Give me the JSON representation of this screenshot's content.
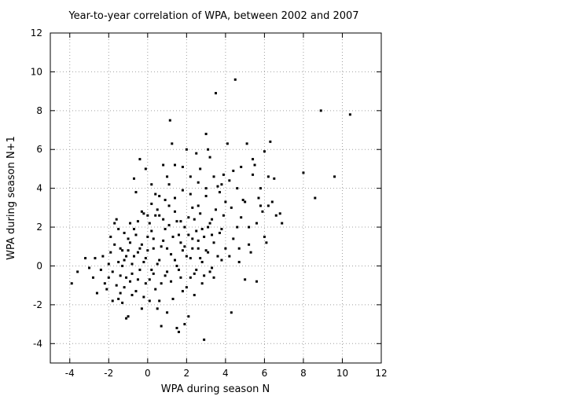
{
  "chart_data": {
    "type": "scatter",
    "title": "Year-to-year correlation of WPA, between 2002 and 2007",
    "xlabel": "WPA during season N",
    "ylabel": "WPA during season N+1",
    "xlim": [
      -5,
      12
    ],
    "ylim": [
      -5,
      12
    ],
    "xticks": [
      -4,
      -2,
      0,
      2,
      4,
      6,
      8,
      10,
      12
    ],
    "yticks": [
      -4,
      -2,
      0,
      2,
      4,
      6,
      8,
      10,
      12
    ],
    "grid": true,
    "legend": "none",
    "marker_color": "#000000",
    "grid_color": "#a0a0a0",
    "series": [
      {
        "points": [
          [
            -3.9,
            -0.9
          ],
          [
            -3.6,
            -0.3
          ],
          [
            -3.2,
            0.4
          ],
          [
            -3.0,
            -0.1
          ],
          [
            -2.8,
            -0.6
          ],
          [
            -2.7,
            0.4
          ],
          [
            -2.6,
            -1.4
          ],
          [
            -2.4,
            -0.2
          ],
          [
            -2.3,
            0.5
          ],
          [
            -2.2,
            -0.9
          ],
          [
            -2.1,
            -1.2
          ],
          [
            -2.0,
            0.1
          ],
          [
            -1.9,
            1.5
          ],
          [
            -1.8,
            -1.8
          ],
          [
            -1.7,
            2.2
          ],
          [
            -1.6,
            2.4
          ],
          [
            -1.5,
            -1.7
          ],
          [
            -1.4,
            0.9
          ],
          [
            -1.3,
            -1.9
          ],
          [
            -1.2,
            0.3
          ],
          [
            -1.1,
            -2.7
          ],
          [
            -1.0,
            -2.6
          ],
          [
            -0.9,
            1.2
          ],
          [
            -0.8,
            -0.4
          ],
          [
            -0.7,
            4.5
          ],
          [
            -0.6,
            3.8
          ],
          [
            -0.5,
            0.7
          ],
          [
            -0.4,
            5.5
          ],
          [
            -0.3,
            -2.2
          ],
          [
            -0.2,
            2.7
          ],
          [
            -0.1,
            5.0
          ],
          [
            0.0,
            1.5
          ],
          [
            0.1,
            -1.8
          ],
          [
            0.2,
            3.2
          ],
          [
            0.3,
            -0.4
          ],
          [
            0.4,
            3.7
          ],
          [
            0.5,
            -2.2
          ],
          [
            0.6,
            2.6
          ],
          [
            0.7,
            -3.1
          ],
          [
            0.8,
            5.2
          ],
          [
            0.9,
            1.9
          ],
          [
            1.0,
            -2.4
          ],
          [
            1.1,
            4.2
          ],
          [
            1.15,
            7.5
          ],
          [
            1.25,
            6.3
          ],
          [
            1.4,
            5.2
          ],
          [
            1.5,
            -3.2
          ],
          [
            1.6,
            -3.4
          ],
          [
            1.7,
            2.3
          ],
          [
            1.8,
            0.8
          ],
          [
            1.9,
            -3.0
          ],
          [
            2.0,
            6.0
          ],
          [
            2.1,
            -2.6
          ],
          [
            2.2,
            4.6
          ],
          [
            2.3,
            1.4
          ],
          [
            2.4,
            -1.5
          ],
          [
            2.5,
            5.8
          ],
          [
            2.6,
            3.1
          ],
          [
            2.7,
            5.0
          ],
          [
            2.8,
            0.2
          ],
          [
            2.9,
            -3.8
          ],
          [
            3.0,
            6.8
          ],
          [
            3.1,
            6.0
          ],
          [
            3.2,
            5.6
          ],
          [
            3.3,
            2.4
          ],
          [
            3.4,
            -0.6
          ],
          [
            3.5,
            8.9
          ],
          [
            3.6,
            4.1
          ],
          [
            3.7,
            1.7
          ],
          [
            3.8,
            0.3
          ],
          [
            3.9,
            4.7
          ],
          [
            4.0,
            3.3
          ],
          [
            4.1,
            6.3
          ],
          [
            4.2,
            0.5
          ],
          [
            4.3,
            -2.4
          ],
          [
            4.4,
            4.9
          ],
          [
            4.5,
            9.6
          ],
          [
            4.6,
            2.0
          ],
          [
            4.7,
            0.2
          ],
          [
            4.8,
            5.1
          ],
          [
            4.9,
            3.4
          ],
          [
            5.0,
            -0.7
          ],
          [
            5.1,
            6.3
          ],
          [
            5.2,
            2.0
          ],
          [
            5.3,
            0.7
          ],
          [
            5.4,
            5.5
          ],
          [
            5.5,
            5.2
          ],
          [
            5.6,
            -0.8
          ],
          [
            5.7,
            3.5
          ],
          [
            5.8,
            3.1
          ],
          [
            5.9,
            2.8
          ],
          [
            6.0,
            5.9
          ],
          [
            6.1,
            1.2
          ],
          [
            6.2,
            4.6
          ],
          [
            6.3,
            6.4
          ],
          [
            6.4,
            3.3
          ],
          [
            6.5,
            4.5
          ],
          [
            6.8,
            2.7
          ],
          [
            6.9,
            2.2
          ],
          [
            8.0,
            4.8
          ],
          [
            8.6,
            3.5
          ],
          [
            8.9,
            8.0
          ],
          [
            9.6,
            4.6
          ],
          [
            10.4,
            7.8
          ],
          [
            -1.5,
            0.2
          ],
          [
            -1.4,
            -0.5
          ],
          [
            -1.3,
            0.8
          ],
          [
            -1.2,
            -1.1
          ],
          [
            -1.1,
            0.5
          ],
          [
            -1.0,
            1.4
          ],
          [
            -0.9,
            -0.8
          ],
          [
            -0.8,
            0.1
          ],
          [
            -0.7,
            1.9
          ],
          [
            -0.6,
            -1.3
          ],
          [
            -0.5,
            2.3
          ],
          [
            -0.4,
            -0.2
          ],
          [
            -0.3,
            1.1
          ],
          [
            -0.2,
            -1.6
          ],
          [
            -0.1,
            0.4
          ],
          [
            0.0,
            2.6
          ],
          [
            0.1,
            -0.7
          ],
          [
            0.2,
            1.8
          ],
          [
            0.3,
            0.9
          ],
          [
            0.4,
            -1.2
          ],
          [
            0.5,
            2.9
          ],
          [
            0.6,
            0.3
          ],
          [
            0.7,
            -0.9
          ],
          [
            0.8,
            1.3
          ],
          [
            0.9,
            3.4
          ],
          [
            1.0,
            -0.3
          ],
          [
            1.1,
            2.1
          ],
          [
            1.2,
            0.6
          ],
          [
            1.3,
            -1.7
          ],
          [
            1.4,
            2.8
          ],
          [
            1.5,
            0.0
          ],
          [
            1.6,
            1.6
          ],
          [
            1.7,
            -0.6
          ],
          [
            1.8,
            3.9
          ],
          [
            1.9,
            1.0
          ],
          [
            2.0,
            -1.1
          ],
          [
            2.1,
            2.5
          ],
          [
            2.2,
            0.4
          ],
          [
            2.3,
            3.0
          ],
          [
            2.4,
            -0.4
          ],
          [
            2.5,
            1.8
          ],
          [
            2.6,
            0.9
          ],
          [
            2.7,
            2.7
          ],
          [
            2.8,
            -0.9
          ],
          [
            2.9,
            1.5
          ],
          [
            3.0,
            3.6
          ],
          [
            3.1,
            0.7
          ],
          [
            3.2,
            2.2
          ],
          [
            3.3,
            -0.1
          ],
          [
            3.4,
            1.2
          ],
          [
            3.5,
            2.9
          ],
          [
            3.6,
            0.5
          ],
          [
            3.7,
            3.8
          ],
          [
            3.8,
            1.9
          ],
          [
            3.9,
            2.6
          ],
          [
            4.0,
            0.9
          ],
          [
            -2.0,
            -0.6
          ],
          [
            -1.9,
            0.7
          ],
          [
            -1.8,
            -0.3
          ],
          [
            -1.7,
            1.1
          ],
          [
            -1.6,
            -1.0
          ],
          [
            -1.5,
            1.9
          ],
          [
            -1.4,
            -1.4
          ],
          [
            -1.3,
            0.0
          ],
          [
            -1.2,
            1.7
          ],
          [
            -1.1,
            -0.6
          ],
          [
            -1.0,
            0.8
          ],
          [
            -0.9,
            2.2
          ],
          [
            -0.8,
            -1.5
          ],
          [
            -0.7,
            0.5
          ],
          [
            -0.6,
            1.6
          ],
          [
            -0.5,
            -0.7
          ],
          [
            -0.4,
            0.9
          ],
          [
            -0.3,
            2.8
          ],
          [
            -0.2,
            0.2
          ],
          [
            -0.1,
            -0.9
          ],
          [
            0.0,
            0.8
          ],
          [
            0.1,
            2.2
          ],
          [
            0.2,
            -0.2
          ],
          [
            0.3,
            1.4
          ],
          [
            0.4,
            2.6
          ],
          [
            0.5,
            0.1
          ],
          [
            0.6,
            -1.8
          ],
          [
            0.7,
            1.0
          ],
          [
            0.8,
            2.4
          ],
          [
            0.9,
            -0.5
          ],
          [
            1.0,
            0.9
          ],
          [
            1.1,
            3.1
          ],
          [
            1.2,
            -0.8
          ],
          [
            1.3,
            1.5
          ],
          [
            1.4,
            0.3
          ],
          [
            1.5,
            2.3
          ],
          [
            1.6,
            -0.2
          ],
          [
            1.7,
            1.2
          ],
          [
            1.8,
            -1.3
          ],
          [
            1.9,
            2.0
          ],
          [
            2.0,
            0.5
          ],
          [
            2.1,
            1.6
          ],
          [
            2.2,
            -0.6
          ],
          [
            2.3,
            0.9
          ],
          [
            2.4,
            2.4
          ],
          [
            2.5,
            -0.2
          ],
          [
            2.6,
            1.3
          ],
          [
            2.7,
            0.4
          ],
          [
            2.8,
            1.9
          ],
          [
            2.9,
            -0.5
          ],
          [
            3.0,
            0.8
          ],
          [
            3.1,
            2.0
          ],
          [
            3.2,
            -0.3
          ],
          [
            3.3,
            1.6
          ],
          [
            0.2,
            4.2
          ],
          [
            0.6,
            3.6
          ],
          [
            1.0,
            4.6
          ],
          [
            1.4,
            3.5
          ],
          [
            1.8,
            5.1
          ],
          [
            2.2,
            3.7
          ],
          [
            2.6,
            4.3
          ],
          [
            3.0,
            4.0
          ],
          [
            3.4,
            4.6
          ],
          [
            3.8,
            4.2
          ],
          [
            4.2,
            4.4
          ],
          [
            4.6,
            4.0
          ],
          [
            5.0,
            3.3
          ],
          [
            5.4,
            4.7
          ],
          [
            5.8,
            4.0
          ],
          [
            6.2,
            3.1
          ],
          [
            6.6,
            2.6
          ],
          [
            4.4,
            1.4
          ],
          [
            4.8,
            2.5
          ],
          [
            5.2,
            1.1
          ],
          [
            5.6,
            2.2
          ],
          [
            6.0,
            1.5
          ],
          [
            4.3,
            3.0
          ],
          [
            4.7,
            0.9
          ]
        ]
      }
    ]
  }
}
